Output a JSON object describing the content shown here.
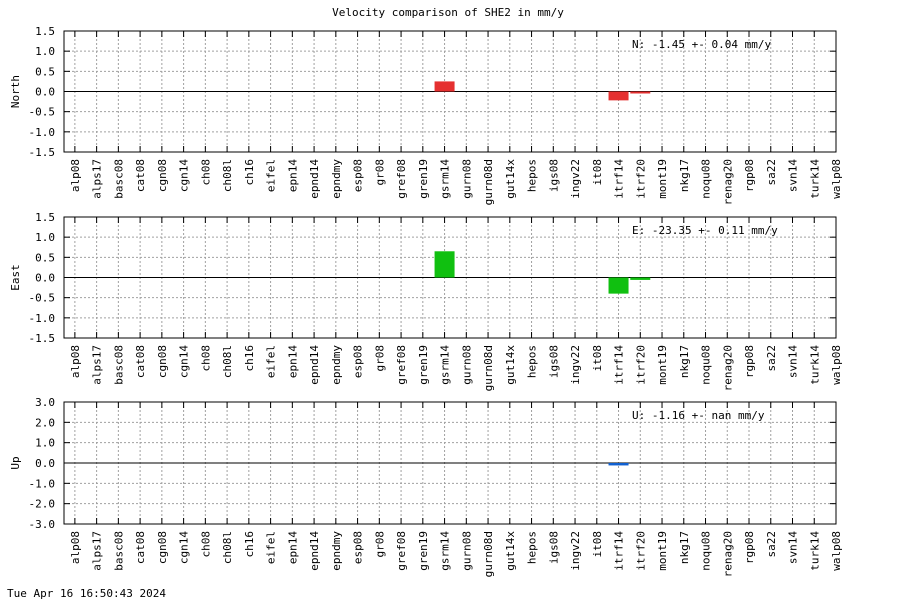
{
  "title": "Velocity comparison of SHE2 in mm/y",
  "timestamp": "Tue Apr 16 16:50:43 2024",
  "chart_data": [
    {
      "type": "bar",
      "ylabel": "North",
      "ylim": [
        -1.5,
        1.5
      ],
      "yticks": [
        -1.5,
        -1.0,
        -0.5,
        0.0,
        0.5,
        1.0,
        1.5
      ],
      "ytick_labels": [
        "-1.5",
        "-1.0",
        "-0.5",
        "0.0",
        "0.5",
        "1.0",
        "1.5"
      ],
      "annotation": "N:  -1.45 +-  0.04 mm/y",
      "color": "#e53030",
      "grid": true,
      "categories": [
        "alp08",
        "alps17",
        "basc08",
        "cat08",
        "cgn08",
        "cgn14",
        "ch08",
        "ch08l",
        "ch16",
        "eifel",
        "epn14",
        "epnd14",
        "epndmy",
        "esp08",
        "gr08",
        "gref08",
        "gren19",
        "gsrm14",
        "gurn08",
        "gurn08d",
        "gut14x",
        "hepos",
        "igs08",
        "ingv22",
        "it08",
        "itrf14",
        "itrf20",
        "mont19",
        "nkg17",
        "noqu08",
        "renag20",
        "rgp08",
        "sa22",
        "svn14",
        "turk14",
        "walp08"
      ],
      "values": [
        null,
        null,
        null,
        null,
        null,
        null,
        null,
        null,
        null,
        null,
        null,
        null,
        null,
        null,
        null,
        null,
        null,
        0.25,
        null,
        null,
        null,
        null,
        null,
        null,
        null,
        -0.22,
        -0.03,
        null,
        null,
        null,
        null,
        null,
        null,
        null,
        null,
        null
      ]
    },
    {
      "type": "bar",
      "ylabel": "East",
      "ylim": [
        -1.5,
        1.5
      ],
      "yticks": [
        -1.5,
        -1.0,
        -0.5,
        0.0,
        0.5,
        1.0,
        1.5
      ],
      "ytick_labels": [
        "-1.5",
        "-1.0",
        "-0.5",
        "0.0",
        "0.5",
        "1.0",
        "1.5"
      ],
      "annotation": "E: -23.35 +-  0.11 mm/y",
      "color": "#10c010",
      "grid": true,
      "categories": [
        "alp08",
        "alps17",
        "basc08",
        "cat08",
        "cgn08",
        "cgn14",
        "ch08",
        "ch08l",
        "ch16",
        "eifel",
        "epn14",
        "epnd14",
        "epndmy",
        "esp08",
        "gr08",
        "gref08",
        "gren19",
        "gsrm14",
        "gurn08",
        "gurn08d",
        "gut14x",
        "hepos",
        "igs08",
        "ingv22",
        "it08",
        "itrf14",
        "itrf20",
        "mont19",
        "nkg17",
        "noqu08",
        "renag20",
        "rgp08",
        "sa22",
        "svn14",
        "turk14",
        "walp08"
      ],
      "values": [
        null,
        null,
        null,
        null,
        null,
        null,
        null,
        null,
        null,
        null,
        null,
        null,
        null,
        null,
        null,
        null,
        null,
        0.65,
        null,
        null,
        null,
        null,
        null,
        null,
        null,
        -0.4,
        -0.06,
        null,
        null,
        null,
        null,
        null,
        null,
        null,
        null,
        null
      ]
    },
    {
      "type": "bar",
      "ylabel": "Up",
      "ylim": [
        -3.0,
        3.0
      ],
      "yticks": [
        -3.0,
        -2.0,
        -1.0,
        0.0,
        1.0,
        2.0,
        3.0
      ],
      "ytick_labels": [
        "-3.0",
        "-2.0",
        "-1.0",
        "0.0",
        "1.0",
        "2.0",
        "3.0"
      ],
      "annotation": "U:  -1.16 +-   nan mm/y",
      "color": "#1060d0",
      "grid": true,
      "categories": [
        "alp08",
        "alps17",
        "basc08",
        "cat08",
        "cgn08",
        "cgn14",
        "ch08",
        "ch08l",
        "ch16",
        "eifel",
        "epn14",
        "epnd14",
        "epndmy",
        "esp08",
        "gr08",
        "gref08",
        "gren19",
        "gsrm14",
        "gurn08",
        "gurn08d",
        "gut14x",
        "hepos",
        "igs08",
        "ingv22",
        "it08",
        "itrf14",
        "itrf20",
        "mont19",
        "nkg17",
        "noqu08",
        "renag20",
        "rgp08",
        "sa22",
        "svn14",
        "turk14",
        "walp08"
      ],
      "values": [
        null,
        null,
        null,
        null,
        null,
        null,
        null,
        null,
        null,
        null,
        null,
        null,
        null,
        null,
        null,
        null,
        null,
        null,
        null,
        null,
        null,
        null,
        null,
        null,
        null,
        -0.12,
        null,
        null,
        null,
        null,
        null,
        null,
        null,
        null,
        null,
        null
      ]
    }
  ]
}
